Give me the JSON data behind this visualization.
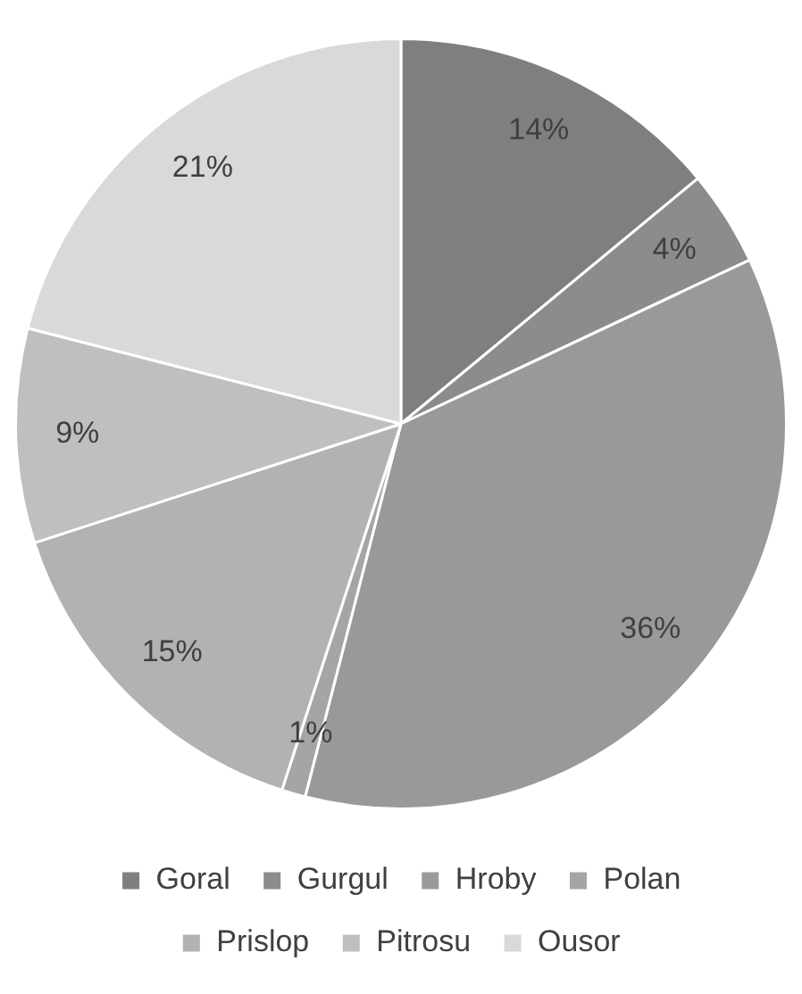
{
  "chart_data": {
    "type": "pie",
    "categories": [
      "Goral",
      "Gurgul",
      "Hroby",
      "Polan",
      "Prislop",
      "Pitrosu",
      "Ousor"
    ],
    "values": [
      14,
      4,
      36,
      1,
      15,
      9,
      21
    ],
    "colors": [
      "#7f7f7f",
      "#8c8c8c",
      "#999999",
      "#a5a5a5",
      "#b2b2b2",
      "#bfbfbf",
      "#d9d9d9"
    ],
    "value_labels": [
      "14%",
      "4%",
      "36%",
      "1%",
      "15%",
      "9%",
      "21%"
    ],
    "legend": "bottom"
  }
}
